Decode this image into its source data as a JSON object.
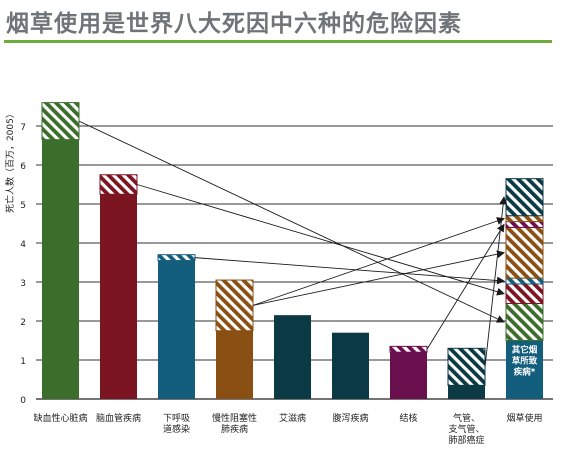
{
  "title": "烟草使用是世界八大死因中六种的危险因素",
  "colors": {
    "accent": "#6cab3c",
    "title": "#6f7478"
  },
  "chart_data": {
    "type": "bar",
    "stacked": true,
    "title": "烟草使用是世界八大死因中六种的危险因素",
    "ylabel": "死亡人数（百万，2005）",
    "ylim": [
      0,
      8
    ],
    "yticks": [
      0,
      1,
      2,
      3,
      4,
      5,
      6,
      7
    ],
    "grid": true,
    "categories": [
      {
        "label": [
          "缺血性心脏病"
        ],
        "color": "#3b6e2b",
        "total": 6.65,
        "tobacco": 0.95
      },
      {
        "label": [
          "脑血管疾病"
        ],
        "color": "#7c1522",
        "total": 5.25,
        "tobacco": 0.5
      },
      {
        "label": [
          "下呼吸",
          "道感染"
        ],
        "color": "#145e7d",
        "total": 3.55,
        "tobacco": 0.15
      },
      {
        "label": [
          "慢性阻塞性",
          "肺疾病"
        ],
        "color": "#8a4f12",
        "total": 1.75,
        "tobacco": 1.3
      },
      {
        "label": [
          "艾滋病"
        ],
        "color": "#0b3a45",
        "total": 2.15,
        "tobacco": 0
      },
      {
        "label": [
          "腹泻疾病"
        ],
        "color": "#0b3a45",
        "total": 1.7,
        "tobacco": 0
      },
      {
        "label": [
          "结核"
        ],
        "color": "#6a0f4e",
        "total": 1.2,
        "tobacco": 0.15
      },
      {
        "label": [
          "气管、",
          "支气管、",
          "肺部癌症"
        ],
        "color": "#0b3a45",
        "total": 0.35,
        "tobacco": 0.95
      }
    ],
    "tobacco_bar": {
      "label": [
        "烟草使用"
      ],
      "inner_label": [
        "其它烟",
        "草所致",
        "疾病*"
      ],
      "base": {
        "value": 1.5,
        "color": "#145e7d"
      },
      "segments": [
        {
          "from": 7,
          "value": 0.95
        },
        {
          "from": 3,
          "value": 0.15
        },
        {
          "from": 6,
          "value": 0.15
        },
        {
          "from": 3,
          "value": 1.3
        },
        {
          "from": 2,
          "value": 0.15
        },
        {
          "from": 1,
          "value": 0.5
        },
        {
          "from": 0,
          "value": 0.95
        }
      ]
    }
  }
}
